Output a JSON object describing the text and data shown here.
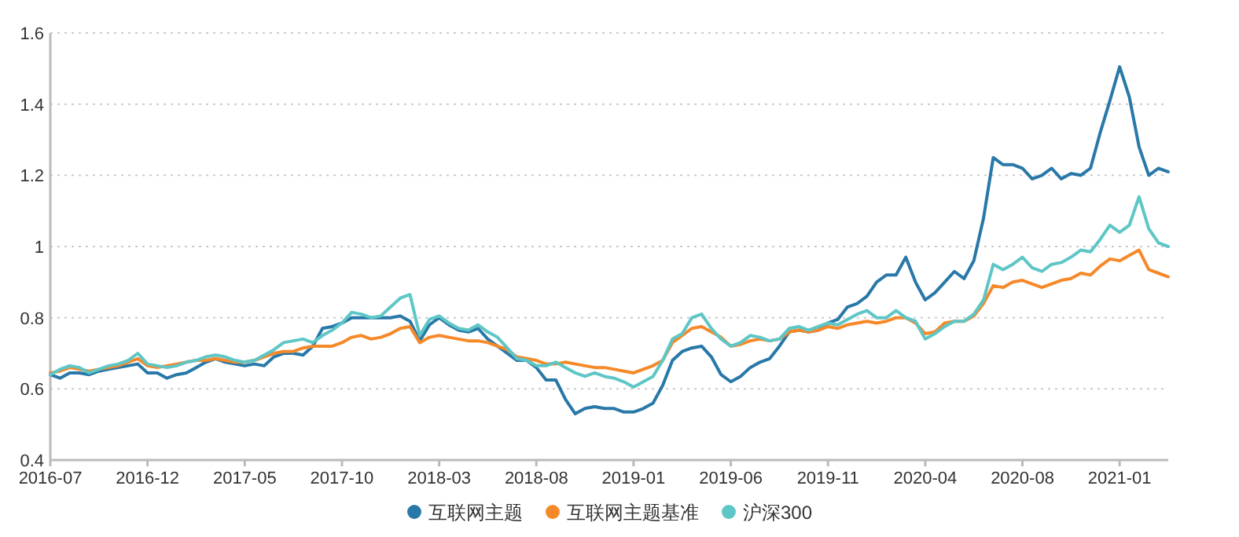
{
  "chart_data": {
    "type": "line",
    "categories": [
      "2016-07",
      null,
      null,
      null,
      null,
      null,
      null,
      null,
      null,
      null,
      "2016-12",
      null,
      null,
      null,
      null,
      null,
      null,
      null,
      null,
      null,
      "2017-05",
      null,
      null,
      null,
      null,
      null,
      null,
      null,
      null,
      null,
      "2017-10",
      null,
      null,
      null,
      null,
      null,
      null,
      null,
      null,
      null,
      "2018-03",
      null,
      null,
      null,
      null,
      null,
      null,
      null,
      null,
      null,
      "2018-08",
      null,
      null,
      null,
      null,
      null,
      null,
      null,
      null,
      null,
      "2019-01",
      null,
      null,
      null,
      null,
      null,
      null,
      null,
      null,
      null,
      "2019-06",
      null,
      null,
      null,
      null,
      null,
      null,
      null,
      null,
      null,
      "2019-11",
      null,
      null,
      null,
      null,
      null,
      null,
      null,
      null,
      null,
      "2020-04",
      null,
      null,
      null,
      null,
      null,
      null,
      null,
      null,
      null,
      "2020-08",
      null,
      null,
      null,
      null,
      null,
      null,
      null,
      null,
      null,
      "2021-01",
      null,
      null,
      null,
      null,
      null
    ],
    "series": [
      {
        "name": "互联网主题",
        "color": "#2878a8",
        "values": [
          0.64,
          0.63,
          0.645,
          0.645,
          0.64,
          0.65,
          0.655,
          0.66,
          0.665,
          0.67,
          0.645,
          0.645,
          0.63,
          0.64,
          0.645,
          0.66,
          0.675,
          0.685,
          0.675,
          0.67,
          0.665,
          0.67,
          0.665,
          0.69,
          0.7,
          0.7,
          0.695,
          0.72,
          0.77,
          0.775,
          0.785,
          0.8,
          0.8,
          0.8,
          0.8,
          0.8,
          0.805,
          0.79,
          0.735,
          0.78,
          0.8,
          0.78,
          0.765,
          0.76,
          0.77,
          0.74,
          0.72,
          0.7,
          0.68,
          0.68,
          0.66,
          0.625,
          0.625,
          0.57,
          0.53,
          0.545,
          0.55,
          0.545,
          0.545,
          0.535,
          0.535,
          0.545,
          0.56,
          0.61,
          0.68,
          0.705,
          0.715,
          0.72,
          0.69,
          0.64,
          0.62,
          0.635,
          0.66,
          0.675,
          0.685,
          0.72,
          0.76,
          0.765,
          0.76,
          0.765,
          0.785,
          0.795,
          0.83,
          0.84,
          0.86,
          0.9,
          0.92,
          0.92,
          0.97,
          0.9,
          0.85,
          0.87,
          0.9,
          0.93,
          0.91,
          0.96,
          1.08,
          1.25,
          1.23,
          1.23,
          1.22,
          1.19,
          1.2,
          1.22,
          1.19,
          1.205,
          1.2,
          1.22,
          1.32,
          1.41,
          1.505,
          1.42,
          1.28,
          1.2,
          1.22,
          1.21
        ]
      },
      {
        "name": "互联网主题基准",
        "color": "#f5892a",
        "values": [
          0.645,
          0.65,
          0.66,
          0.655,
          0.65,
          0.655,
          0.66,
          0.665,
          0.675,
          0.685,
          0.665,
          0.66,
          0.665,
          0.67,
          0.675,
          0.68,
          0.68,
          0.685,
          0.68,
          0.675,
          0.675,
          0.68,
          0.69,
          0.7,
          0.705,
          0.705,
          0.715,
          0.72,
          0.72,
          0.72,
          0.73,
          0.745,
          0.75,
          0.74,
          0.745,
          0.755,
          0.77,
          0.775,
          0.73,
          0.745,
          0.75,
          0.745,
          0.74,
          0.735,
          0.735,
          0.73,
          0.72,
          0.71,
          0.69,
          0.685,
          0.68,
          0.67,
          0.67,
          0.675,
          0.67,
          0.665,
          0.66,
          0.66,
          0.655,
          0.65,
          0.645,
          0.655,
          0.665,
          0.68,
          0.73,
          0.75,
          0.77,
          0.775,
          0.76,
          0.745,
          0.72,
          0.725,
          0.735,
          0.74,
          0.735,
          0.74,
          0.76,
          0.765,
          0.76,
          0.765,
          0.775,
          0.77,
          0.78,
          0.785,
          0.79,
          0.785,
          0.79,
          0.8,
          0.8,
          0.785,
          0.755,
          0.76,
          0.785,
          0.79,
          0.79,
          0.805,
          0.84,
          0.89,
          0.885,
          0.9,
          0.905,
          0.895,
          0.885,
          0.895,
          0.905,
          0.91,
          0.925,
          0.92,
          0.945,
          0.965,
          0.96,
          0.975,
          0.99,
          0.935,
          0.925,
          0.915
        ]
      },
      {
        "name": "沪深300",
        "color": "#5ec6c6",
        "values": [
          0.64,
          0.655,
          0.665,
          0.66,
          0.645,
          0.655,
          0.665,
          0.67,
          0.68,
          0.7,
          0.67,
          0.665,
          0.66,
          0.665,
          0.675,
          0.68,
          0.69,
          0.695,
          0.69,
          0.68,
          0.675,
          0.68,
          0.695,
          0.71,
          0.73,
          0.735,
          0.74,
          0.73,
          0.75,
          0.765,
          0.785,
          0.815,
          0.81,
          0.8,
          0.805,
          0.83,
          0.855,
          0.865,
          0.75,
          0.795,
          0.805,
          0.785,
          0.77,
          0.765,
          0.78,
          0.76,
          0.745,
          0.715,
          0.685,
          0.68,
          0.665,
          0.665,
          0.675,
          0.66,
          0.645,
          0.635,
          0.645,
          0.635,
          0.63,
          0.62,
          0.605,
          0.62,
          0.635,
          0.68,
          0.74,
          0.755,
          0.8,
          0.81,
          0.77,
          0.74,
          0.72,
          0.73,
          0.75,
          0.745,
          0.735,
          0.74,
          0.77,
          0.775,
          0.765,
          0.775,
          0.785,
          0.78,
          0.795,
          0.81,
          0.82,
          0.8,
          0.8,
          0.82,
          0.8,
          0.79,
          0.74,
          0.755,
          0.775,
          0.79,
          0.79,
          0.81,
          0.85,
          0.95,
          0.935,
          0.95,
          0.97,
          0.94,
          0.93,
          0.95,
          0.955,
          0.97,
          0.99,
          0.985,
          1.02,
          1.06,
          1.04,
          1.06,
          1.14,
          1.05,
          1.01,
          1.0
        ]
      }
    ],
    "ylim": [
      0.4,
      1.6
    ],
    "yticks": [
      0.4,
      0.6,
      0.8,
      1,
      1.2,
      1.4,
      1.6
    ],
    "grid": "y",
    "legend": "bottom"
  }
}
